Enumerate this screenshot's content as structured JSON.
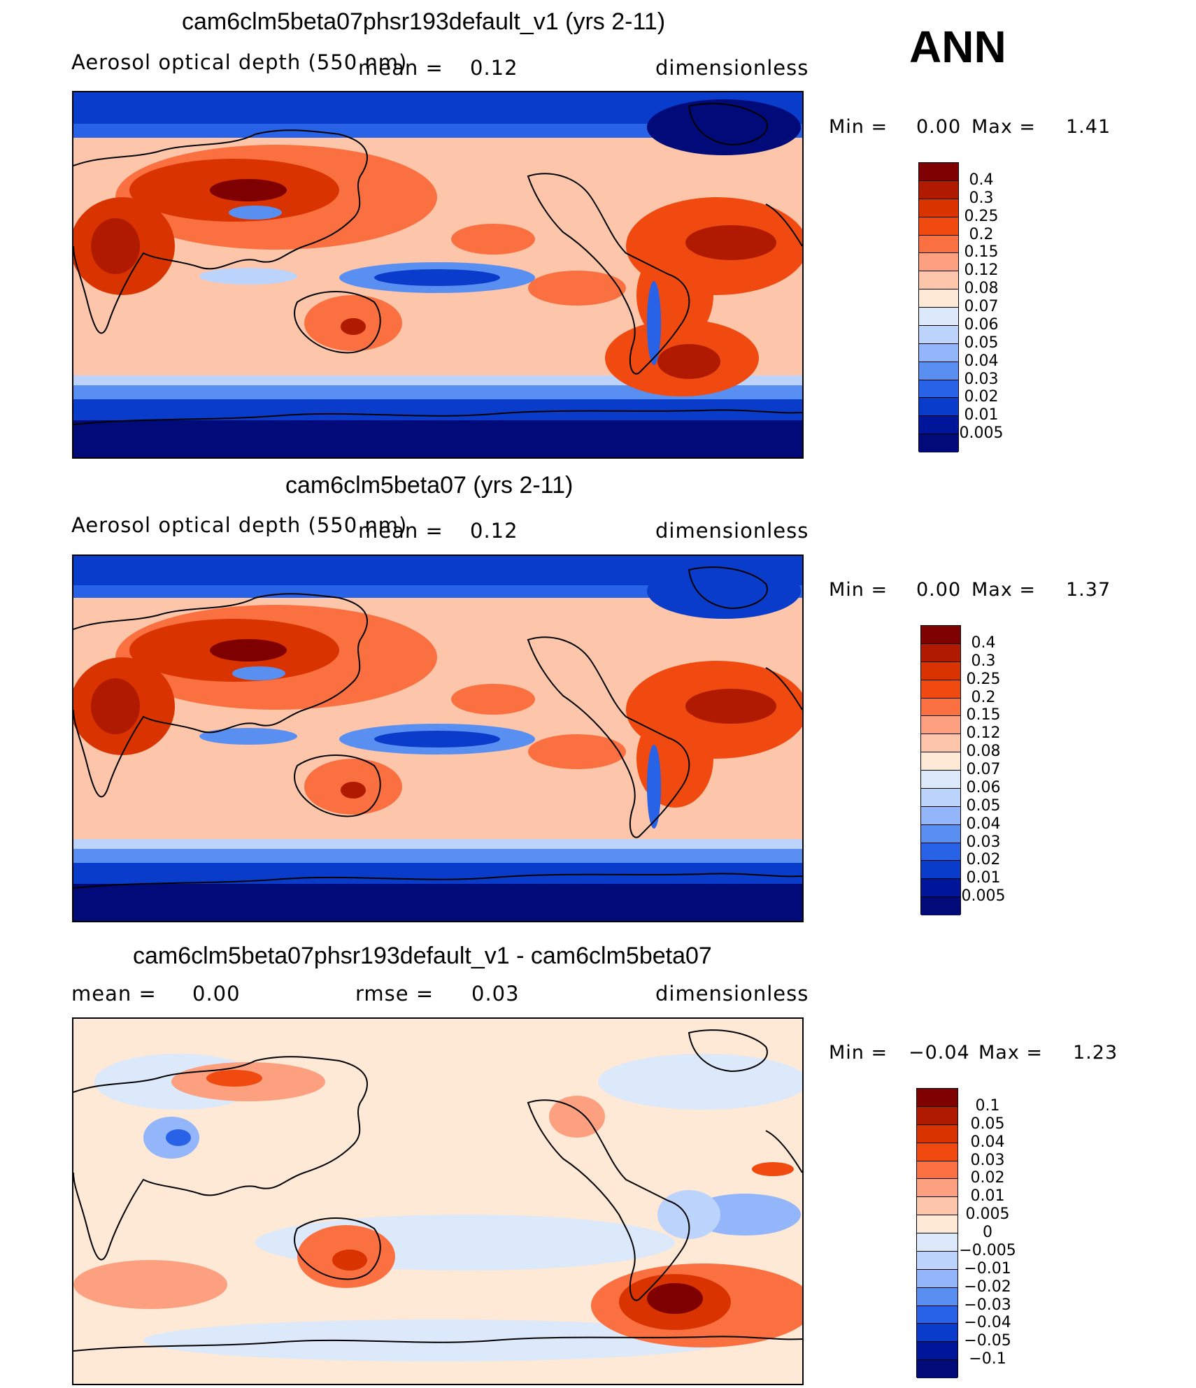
{
  "season": "ANN",
  "panels": [
    {
      "title": "cam6clm5beta07phsr193default_v1 (yrs 2-11)",
      "variable": "Aerosol optical depth (550 nm)",
      "mean_label": "mean =",
      "mean_value": "0.12",
      "units": "dimensionless",
      "min_label": "Min =",
      "min_value": "0.00",
      "max_label": "Max =",
      "max_value": "1.41",
      "colorbar": [
        "0.4",
        "0.3",
        "0.25",
        "0.2",
        "0.15",
        "0.12",
        "0.08",
        "0.07",
        "0.06",
        "0.05",
        "0.04",
        "0.03",
        "0.02",
        "0.01",
        "0.005"
      ]
    },
    {
      "title": "cam6clm5beta07 (yrs 2-11)",
      "variable": "Aerosol optical depth (550 nm)",
      "mean_label": "mean =",
      "mean_value": "0.12",
      "units": "dimensionless",
      "min_label": "Min =",
      "min_value": "0.00",
      "max_label": "Max =",
      "max_value": "1.37",
      "colorbar": [
        "0.4",
        "0.3",
        "0.25",
        "0.2",
        "0.15",
        "0.12",
        "0.08",
        "0.07",
        "0.06",
        "0.05",
        "0.04",
        "0.03",
        "0.02",
        "0.01",
        "0.005"
      ]
    },
    {
      "title": "cam6clm5beta07phsr193default_v1 - cam6clm5beta07",
      "mean_label": "mean =",
      "mean_value": "0.00",
      "rmse_label": "rmse =",
      "rmse_value": "0.03",
      "units": "dimensionless",
      "min_label": "Min =",
      "min_value": "−0.04",
      "max_label": "Max =",
      "max_value": "1.23",
      "colorbar": [
        "0.1",
        "0.05",
        "0.04",
        "0.03",
        "0.02",
        "0.01",
        "0.005",
        "0",
        "−0.005",
        "−0.01",
        "−0.02",
        "−0.03",
        "−0.04",
        "−0.05",
        "−0.1"
      ]
    }
  ],
  "colors": {
    "absolute_scale": [
      "#7f0000",
      "#b01a00",
      "#d93300",
      "#f04a10",
      "#fa7040",
      "#fca080",
      "#fdc6aa",
      "#fee8d6",
      "#dbe9fa",
      "#bcd4fb",
      "#93b6fa",
      "#5a8ff2",
      "#2862e6",
      "#0a3ccc",
      "#00169a",
      "#000a78"
    ],
    "difference_scale": [
      "#7f0000",
      "#b01a00",
      "#d93300",
      "#f04a10",
      "#fa7040",
      "#fca080",
      "#fdc6aa",
      "#fee8d6",
      "#dbe9fa",
      "#bcd4fb",
      "#93b6fa",
      "#5a8ff2",
      "#2862e6",
      "#0a3ccc",
      "#00169a",
      "#000a78"
    ],
    "coastline": "#000000"
  }
}
